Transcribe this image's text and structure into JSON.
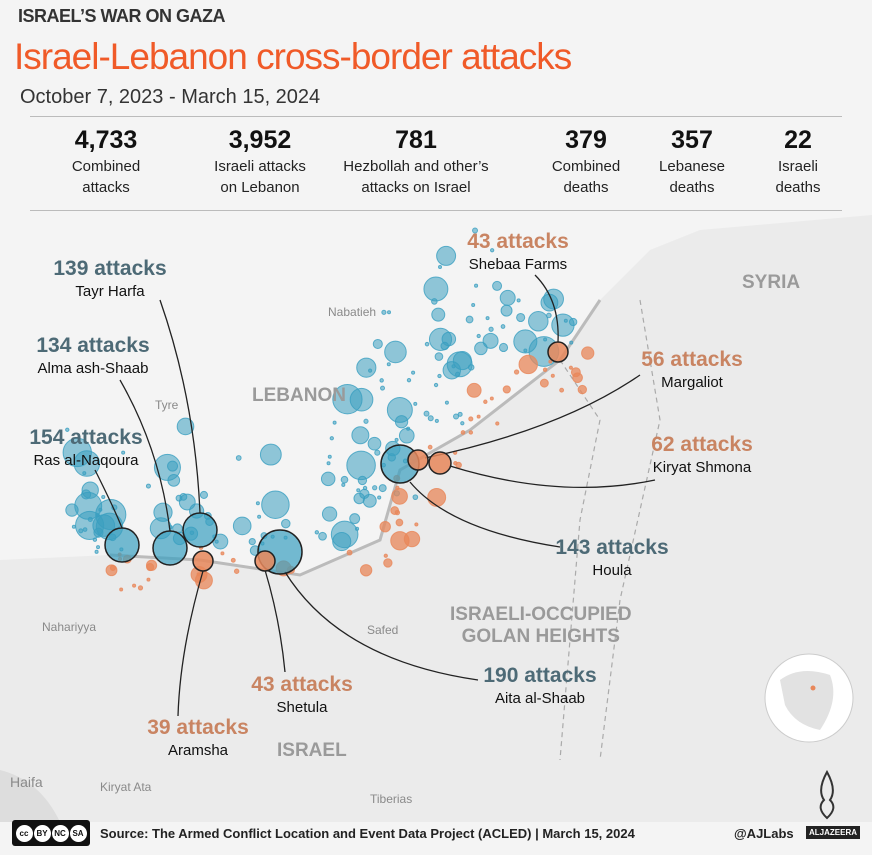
{
  "header": {
    "kicker": "ISRAEL’S WAR ON GAZA",
    "title": "Israel-Lebanon cross-border attacks",
    "dates": "October 7, 2023 - March 15, 2024"
  },
  "stats": [
    {
      "value": "4,733",
      "label1": "Combined",
      "label2": "attacks"
    },
    {
      "value": "3,952",
      "label1": "Israeli attacks",
      "label2": "on Lebanon"
    },
    {
      "value": "781",
      "label1": "Hezbollah and other’s",
      "label2": "attacks on Israel"
    },
    {
      "value": "379",
      "label1": "Combined",
      "label2": "deaths"
    },
    {
      "value": "357",
      "label1": "Lebanese",
      "label2": "deaths"
    },
    {
      "value": "22",
      "label1": "Israeli",
      "label2": "deaths"
    }
  ],
  "annotations": [
    {
      "count": "43 attacks",
      "place": "Shebaa Farms",
      "side": "israeli-target"
    },
    {
      "count": "139 attacks",
      "place": "Tayr Harfa",
      "side": "lebanon-target"
    },
    {
      "count": "134 attacks",
      "place": "Alma ash-Shaab",
      "side": "lebanon-target"
    },
    {
      "count": "154 attacks",
      "place": "Ras al-Naqoura",
      "side": "lebanon-target"
    },
    {
      "count": "56 attacks",
      "place": "Margaliot",
      "side": "israeli-target"
    },
    {
      "count": "62 attacks",
      "place": "Kiryat Shmona",
      "side": "israeli-target"
    },
    {
      "count": "143 attacks",
      "place": "Houla",
      "side": "lebanon-target"
    },
    {
      "count": "190 attacks",
      "place": "Aita al-Shaab",
      "side": "lebanon-target"
    },
    {
      "count": "43 attacks",
      "place": "Shetula",
      "side": "israeli-target"
    },
    {
      "count": "39 attacks",
      "place": "Aramsha",
      "side": "israeli-target"
    }
  ],
  "places": {
    "nabatieh": "Nabatieh",
    "tyre": "Tyre",
    "safed": "Safed",
    "nahariyya": "Nahariyya",
    "haifa": "Haifa",
    "kiryat_ata": "Kiryat Ata",
    "tiberias": "Tiberias"
  },
  "regions": {
    "lebanon": "LEBANON",
    "syria": "SYRIA",
    "golan1": "ISRAELI-OCCUPIED",
    "golan2": "GOLAN HEIGHTS",
    "israel": "ISRAEL"
  },
  "footer": {
    "source": "Source: The Armed Conflict Location and Event Data Project (ACLED) | March 15, 2024",
    "handle": "@AJLabs",
    "brand": "ALJAZEERA",
    "cc": [
      "cc",
      "BY",
      "NC",
      "SA"
    ]
  },
  "colors": {
    "title": "#f05a28",
    "israeli_attacks": "#3a9fc0",
    "hezbollah_attacks": "#e8875a"
  }
}
